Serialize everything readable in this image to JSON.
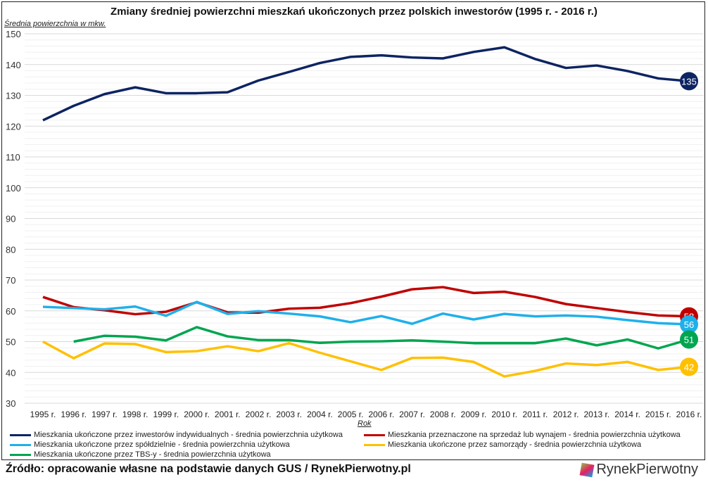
{
  "chart_data": {
    "type": "line",
    "title": "Zmiany średniej powierzchni mieszkań ukończonych przez polskich inwestorów (1995 r. - 2016 r.)",
    "ylabel": "Średnia powierzchnia w mkw.",
    "xlabel": "Rok",
    "ylim": [
      30,
      150
    ],
    "yticks": [
      30,
      40,
      50,
      60,
      70,
      80,
      90,
      100,
      110,
      120,
      130,
      140,
      150
    ],
    "grid": true,
    "legend_placement": "bottom",
    "categories": [
      "1995 r.",
      "1996 r.",
      "1997 r.",
      "1998 r.",
      "1999 r.",
      "2000 r.",
      "2001 r.",
      "2002 r.",
      "2003 r.",
      "2004 r.",
      "2005 r.",
      "2006 r.",
      "2007 r.",
      "2008 r.",
      "2009 r.",
      "2010 r.",
      "2011 r.",
      "2012 r.",
      "2013 r.",
      "2014 r.",
      "2015 r.",
      "2016 r."
    ],
    "series": [
      {
        "name": "Mieszkania ukończone przez inwestorów indywidualnych - średnia powierzchnia użytkowa",
        "color": "#0d2462",
        "end_label": "135",
        "values": [
          121.9,
          126.6,
          130.4,
          132.6,
          130.7,
          130.7,
          131,
          134.8,
          137.6,
          140.5,
          142.5,
          143,
          142.3,
          142,
          144.1,
          145.6,
          141.8,
          138.9,
          139.7,
          137.9,
          135.5,
          134.6
        ]
      },
      {
        "name": "Mieszkania przeznaczone na sprzedaż lub wynajem - średnia powierzchnia użytkowa",
        "color": "#c00000",
        "end_label": "58",
        "values": [
          64.5,
          61.2,
          60.2,
          58.9,
          59.7,
          62.8,
          59.5,
          59.4,
          60.7,
          61,
          62.5,
          64.6,
          67,
          67.7,
          65.8,
          66.2,
          64.5,
          62.2,
          60.9,
          59.6,
          58.5,
          58.2
        ]
      },
      {
        "name": "Mieszkania ukończone przez spółdzielnie - średnia powierzchnia użytkowa",
        "color": "#1fb0ea",
        "end_label": "56",
        "values": [
          61.3,
          60.9,
          60.5,
          61.4,
          58.4,
          62.9,
          59,
          59.9,
          59.1,
          58.2,
          56.3,
          58.3,
          55.8,
          59.1,
          57.2,
          59,
          58.2,
          58.5,
          58.1,
          57,
          56,
          55.6
        ]
      },
      {
        "name": "Mieszkania ukończone przez samorządy - średnia powierzchnia użytkowa",
        "color": "#ffc000",
        "end_label": "42",
        "values": [
          50,
          44.6,
          49.4,
          49.2,
          46.6,
          46.9,
          48.5,
          46.9,
          49.5,
          46.4,
          43.6,
          40.8,
          44.7,
          44.8,
          43.4,
          38.7,
          40.5,
          42.9,
          42.4,
          43.4,
          40.8,
          41.8
        ]
      },
      {
        "name": "Mieszkania ukończone przez TBS-y - średnia powierzchnia użytkowa",
        "color": "#00a550",
        "end_label": "51",
        "values": [
          null,
          50,
          51.9,
          51.6,
          50.4,
          54.7,
          51.7,
          50.5,
          50.5,
          49.6,
          50,
          50.1,
          50.4,
          50,
          49.5,
          49.5,
          49.5,
          51,
          48.8,
          50.7,
          47.8,
          50.7
        ]
      }
    ]
  },
  "footer": {
    "source": "Źródło: opracowanie własne na podstawie danych GUS / RynekPierwotny.pl",
    "logo": "RynekPierwotny"
  }
}
